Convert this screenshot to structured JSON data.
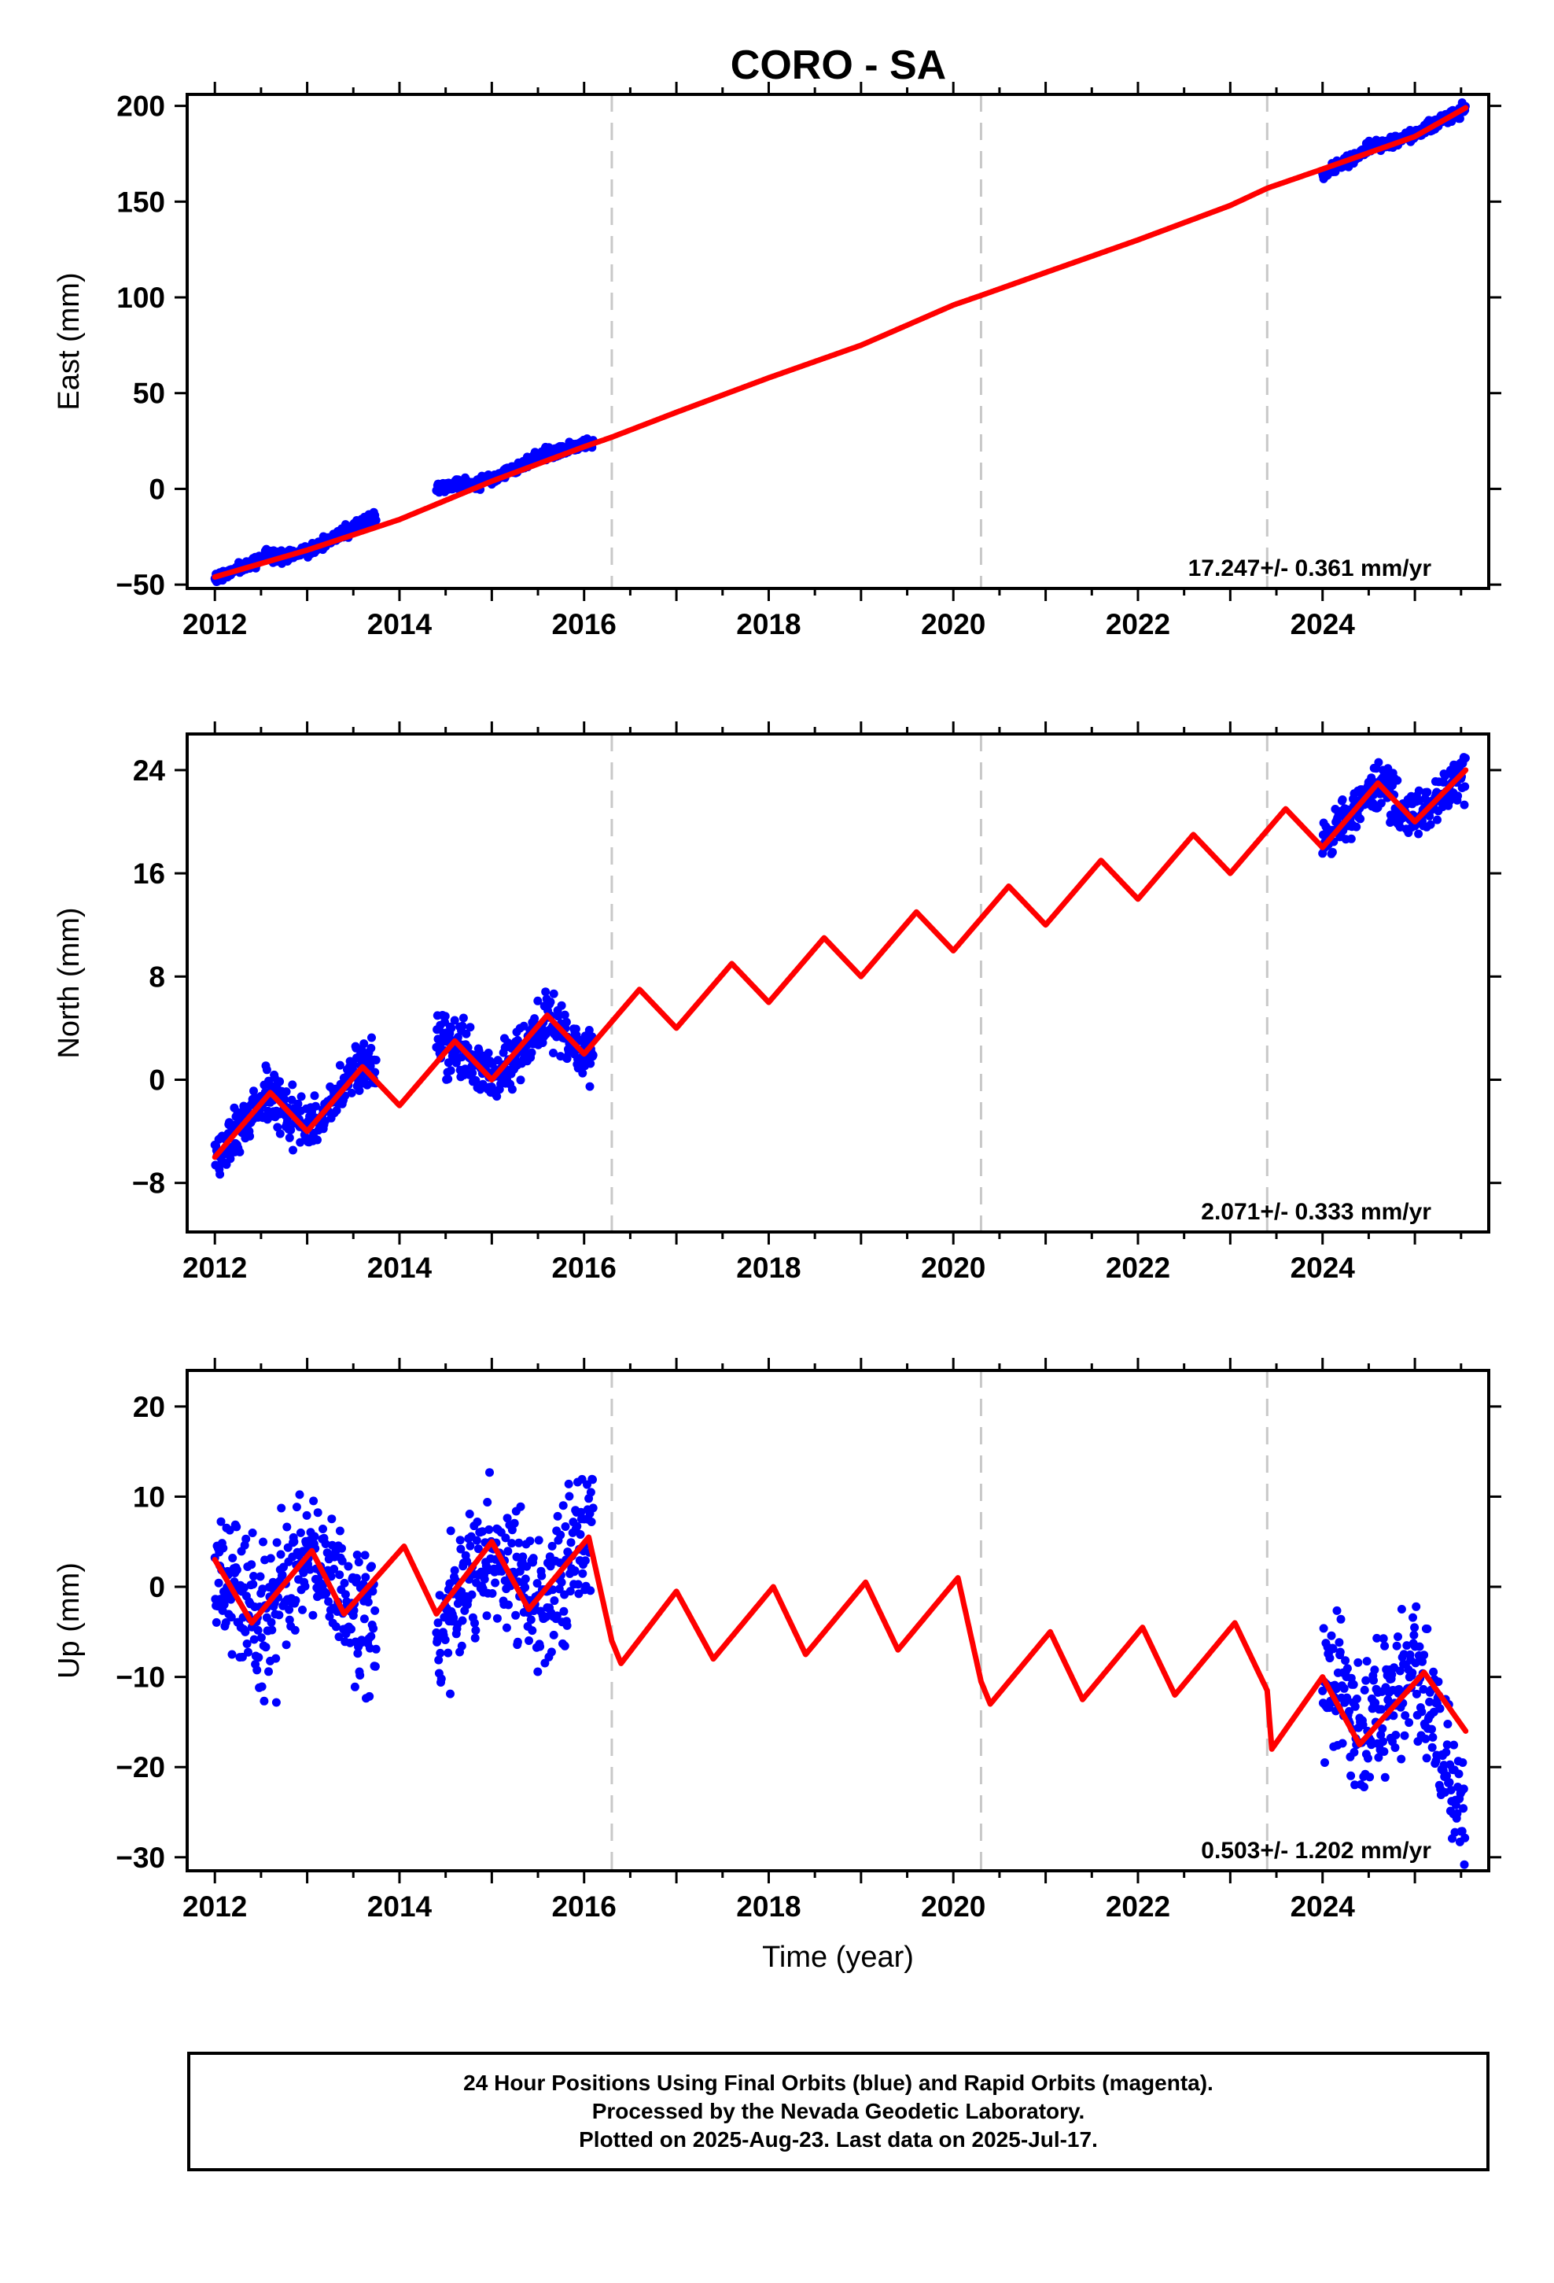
{
  "title": "CORO - SA",
  "colors": {
    "points": "#0000ff",
    "model": "#ff0000",
    "breaks": "#c8c8c8",
    "axes": "#000000"
  },
  "chart_data": [
    {
      "type": "scatter",
      "name": "east",
      "ylabel": "East (mm)",
      "xlim": [
        2011.7,
        2025.8
      ],
      "ylim": [
        -52,
        206
      ],
      "xticks": [
        2012,
        2014,
        2016,
        2018,
        2020,
        2022,
        2024
      ],
      "xtick_labels": [
        "2012",
        "2014",
        "2016",
        "2018",
        "2020",
        "2022",
        "2024"
      ],
      "yticks": [
        -50,
        0,
        50,
        100,
        150,
        200
      ],
      "ytick_labels": [
        "−50",
        "0",
        "50",
        "100",
        "150",
        "200"
      ],
      "rate_text": "17.247+/- 0.361 mm/yr",
      "breaks": [
        2016.3,
        2020.3,
        2023.4
      ],
      "data_spans": [
        [
          2012.0,
          2013.75
        ],
        [
          2014.4,
          2016.1
        ],
        [
          2024.0,
          2025.55
        ]
      ],
      "series": [
        {
          "name": "daily positions",
          "style": "points",
          "x": [
            2012.0,
            2012.5,
            2013.0,
            2013.5,
            2013.75,
            2014.4,
            2015.0,
            2015.5,
            2016.1,
            2024.0,
            2024.5,
            2025.0,
            2025.55
          ],
          "y": [
            -47,
            -37,
            -33,
            -20,
            -15,
            0,
            5,
            17,
            24,
            164,
            178,
            185,
            199
          ]
        },
        {
          "name": "model",
          "style": "line",
          "x": [
            2012.0,
            2013.0,
            2014.0,
            2015.0,
            2016.0,
            2016.3,
            2017.0,
            2018.0,
            2019.0,
            2020.0,
            2020.3,
            2021.0,
            2022.0,
            2023.0,
            2023.4,
            2024.0,
            2025.0,
            2025.55
          ],
          "y": [
            -46,
            -32,
            -16,
            4,
            22,
            27,
            40,
            58,
            75,
            96,
            101,
            113,
            130,
            148,
            157,
            167,
            184,
            199
          ]
        }
      ]
    },
    {
      "type": "scatter",
      "name": "north",
      "ylabel": "North (mm)",
      "xlim": [
        2011.7,
        2025.8
      ],
      "ylim": [
        -11.8,
        26.8
      ],
      "xticks": [
        2012,
        2014,
        2016,
        2018,
        2020,
        2022,
        2024
      ],
      "xtick_labels": [
        "2012",
        "2014",
        "2016",
        "2018",
        "2020",
        "2022",
        "2024"
      ],
      "yticks": [
        -8,
        0,
        8,
        16,
        24
      ],
      "ytick_labels": [
        "−8",
        "0",
        "8",
        "16",
        "24"
      ],
      "rate_text": "2.071+/- 0.333 mm/yr",
      "breaks": [
        2016.3,
        2020.3,
        2023.4
      ],
      "data_spans": [
        [
          2012.0,
          2013.75
        ],
        [
          2014.4,
          2016.1
        ],
        [
          2024.0,
          2025.55
        ]
      ],
      "series": [
        {
          "name": "daily positions",
          "style": "points",
          "x": [
            2012.0,
            2012.6,
            2013.0,
            2013.6,
            2014.6,
            2015.0,
            2015.6,
            2016.0,
            2024.0,
            2024.6,
            2025.0,
            2025.55
          ],
          "y": [
            -6,
            -1,
            -4,
            1,
            3,
            0,
            5,
            2,
            18,
            23,
            20,
            24
          ]
        },
        {
          "name": "model",
          "style": "line",
          "x": [
            2012.0,
            2012.6,
            2013.0,
            2013.6,
            2014.0,
            2014.6,
            2015.0,
            2015.6,
            2016.0,
            2016.6,
            2017.0,
            2017.6,
            2018.0,
            2018.6,
            2019.0,
            2019.6,
            2020.0,
            2020.6,
            2021.0,
            2021.6,
            2022.0,
            2022.6,
            2023.0,
            2023.6,
            2024.0,
            2024.6,
            2025.0,
            2025.55
          ],
          "y": [
            -6,
            -1,
            -4,
            1,
            -2,
            3,
            0,
            5,
            2,
            7,
            4,
            9,
            6,
            11,
            8,
            13,
            10,
            15,
            12,
            17,
            14,
            19,
            16,
            21,
            18,
            23,
            20,
            24
          ]
        }
      ]
    },
    {
      "type": "scatter",
      "name": "up",
      "ylabel": "Up (mm)",
      "xlabel": "Time (year)",
      "xlim": [
        2011.7,
        2025.8
      ],
      "ylim": [
        -31.5,
        24
      ],
      "xticks": [
        2012,
        2014,
        2016,
        2018,
        2020,
        2022,
        2024
      ],
      "xtick_labels": [
        "2012",
        "2014",
        "2016",
        "2018",
        "2020",
        "2022",
        "2024"
      ],
      "yticks": [
        -30,
        -20,
        -10,
        0,
        10,
        20
      ],
      "ytick_labels": [
        "−30",
        "−20",
        "−10",
        "0",
        "10",
        "20"
      ],
      "rate_text": "0.503+/- 1.202 mm/yr",
      "breaks": [
        2016.3,
        2020.3,
        2023.4
      ],
      "data_spans": [
        [
          2012.0,
          2013.75
        ],
        [
          2014.4,
          2016.1
        ],
        [
          2024.0,
          2025.55
        ]
      ],
      "series": [
        {
          "name": "daily positions",
          "style": "points",
          "x": [
            2012.0,
            2012.5,
            2013.0,
            2013.5,
            2014.5,
            2015.0,
            2015.5,
            2016.0,
            2024.0,
            2024.5,
            2025.0,
            2025.55
          ],
          "y": [
            3,
            -4,
            4,
            -3,
            -3,
            5,
            -2,
            6,
            -10,
            -16,
            -9,
            -26
          ]
        },
        {
          "name": "model",
          "style": "line",
          "x": [
            2012.0,
            2012.4,
            2013.05,
            2013.4,
            2014.05,
            2014.4,
            2015.0,
            2015.4,
            2016.05,
            2016.3,
            2016.4,
            2017.0,
            2017.4,
            2018.05,
            2018.4,
            2019.05,
            2019.4,
            2020.05,
            2020.3,
            2020.4,
            2021.05,
            2021.4,
            2022.05,
            2022.4,
            2023.05,
            2023.4,
            2023.45,
            2024.0,
            2024.4,
            2025.1,
            2025.55
          ],
          "y": [
            3,
            -4,
            4,
            -3,
            4.5,
            -3,
            5,
            -2.5,
            5.5,
            -6,
            -8.5,
            -0.5,
            -8,
            0,
            -7.5,
            0.5,
            -7,
            1,
            -10.5,
            -13,
            -5,
            -12.5,
            -4.5,
            -12,
            -4,
            -11.5,
            -18,
            -10,
            -17.5,
            -9.5,
            -16
          ]
        }
      ]
    }
  ],
  "footer": {
    "line1": "24 Hour Positions Using Final Orbits (blue) and Rapid Orbits (magenta).",
    "line2": "Processed by the Nevada Geodetic Laboratory.",
    "line3": "Plotted on 2025-Aug-23. Last data on 2025-Jul-17."
  }
}
